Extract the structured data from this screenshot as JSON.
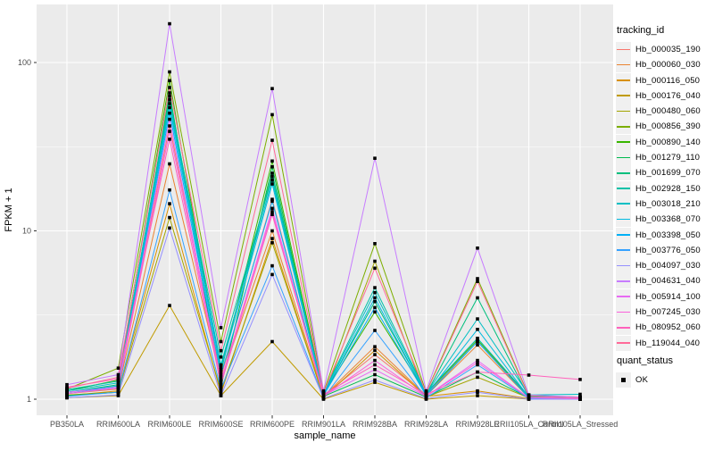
{
  "chart_data": {
    "type": "line",
    "title": "",
    "xlabel": "sample_name",
    "ylabel": "FPKM + 1",
    "y_scale": "log10",
    "ylim": [
      1,
      219
    ],
    "y_ticks": [
      1,
      10,
      100
    ],
    "y_minor_breaks": [
      3.1623,
      31.623
    ],
    "grid": "on",
    "legend_position": "right",
    "panel_bg": "#EBEBEB",
    "grid_color": "#FFFFFF",
    "tick_label_color": "#4D4D4D",
    "tick_mark_color": "#333333",
    "point_shape": "square",
    "point_color": "#000000",
    "categories": [
      "PB350LA",
      "RRIM600LA",
      "RRIM600LE",
      "RRIM600SE",
      "RRIM600PE",
      "RRIM901LA",
      "RRIM928BA",
      "RRIM928LA",
      "RRIM928LE",
      "RRII105LA_Control",
      "RRII105LA_Stressed"
    ],
    "series": [
      {
        "name": "Hb_000035_190",
        "color": "#F8766D",
        "values": [
          1.1,
          1.2,
          42.0,
          1.35,
          15.4,
          1.05,
          1.84,
          1.06,
          2.2,
          1.03,
          1.02
        ]
      },
      {
        "name": "Hb_000060_030",
        "color": "#EA8331",
        "values": [
          1.08,
          1.15,
          25.0,
          1.3,
          10.0,
          1.04,
          2.05,
          1.05,
          2.1,
          1.02,
          1.01
        ]
      },
      {
        "name": "Hb_000116_050",
        "color": "#D89000",
        "values": [
          1.05,
          1.12,
          14.5,
          1.08,
          9.0,
          1.02,
          1.95,
          1.04,
          1.12,
          1.01,
          1.0
        ]
      },
      {
        "name": "Hb_000176_040",
        "color": "#C09B00",
        "values": [
          1.02,
          1.05,
          3.6,
          1.05,
          2.2,
          1.0,
          1.26,
          1.0,
          1.05,
          1.0,
          1.0
        ]
      },
      {
        "name": "Hb_000480_060",
        "color": "#A3A500",
        "values": [
          1.06,
          1.1,
          12.0,
          1.12,
          8.5,
          1.03,
          6.6,
          1.03,
          1.35,
          1.02,
          1.01
        ]
      },
      {
        "name": "Hb_000856_390",
        "color": "#7CAE00",
        "values": [
          1.15,
          1.53,
          88.0,
          2.2,
          49.0,
          1.1,
          8.4,
          1.1,
          5.2,
          1.05,
          1.03
        ]
      },
      {
        "name": "Hb_000890_140",
        "color": "#39B600",
        "values": [
          1.12,
          1.3,
          78.0,
          1.45,
          26.0,
          1.08,
          3.3,
          1.08,
          2.25,
          1.04,
          1.02
        ]
      },
      {
        "name": "Hb_001279_110",
        "color": "#00BB4E",
        "values": [
          1.05,
          1.1,
          66.0,
          1.18,
          24.0,
          1.04,
          1.4,
          1.03,
          1.45,
          1.02,
          1.0
        ]
      },
      {
        "name": "Hb_001699_070",
        "color": "#00BF7D",
        "values": [
          1.1,
          1.22,
          63.0,
          1.55,
          22.0,
          1.07,
          3.8,
          1.07,
          4.0,
          1.03,
          1.02
        ]
      },
      {
        "name": "Hb_002928_150",
        "color": "#00C1A7",
        "values": [
          1.14,
          1.28,
          60.0,
          1.78,
          21.0,
          1.09,
          4.6,
          1.09,
          2.3,
          1.04,
          1.03
        ]
      },
      {
        "name": "Hb_003018_210",
        "color": "#00BFC4",
        "values": [
          1.12,
          1.25,
          57.0,
          1.6,
          20.0,
          1.08,
          4.3,
          1.08,
          3.0,
          1.06,
          1.07
        ]
      },
      {
        "name": "Hb_003368_070",
        "color": "#00BAE0",
        "values": [
          1.1,
          1.2,
          54.0,
          1.5,
          19.0,
          1.06,
          4.0,
          1.06,
          2.6,
          1.03,
          1.02
        ]
      },
      {
        "name": "Hb_003398_050",
        "color": "#00B0F6",
        "values": [
          1.08,
          1.18,
          50.0,
          1.4,
          15.0,
          1.05,
          3.5,
          1.05,
          2.2,
          1.02,
          1.01
        ]
      },
      {
        "name": "Hb_003776_050",
        "color": "#35A2FF",
        "values": [
          1.04,
          1.1,
          17.5,
          1.15,
          6.2,
          1.02,
          2.56,
          1.02,
          1.6,
          1.01,
          1.0
        ]
      },
      {
        "name": "Hb_004097_030",
        "color": "#9590FF",
        "values": [
          1.02,
          1.06,
          10.4,
          1.05,
          5.5,
          1.01,
          1.3,
          1.01,
          1.1,
          1.0,
          1.0
        ]
      },
      {
        "name": "Hb_004631_040",
        "color": "#C77CFF",
        "values": [
          1.22,
          1.4,
          170.0,
          2.66,
          70.0,
          1.12,
          27.0,
          1.12,
          7.9,
          1.06,
          1.03
        ]
      },
      {
        "name": "Hb_005914_100",
        "color": "#E76BF3",
        "values": [
          1.1,
          1.18,
          46.0,
          1.25,
          13.6,
          1.05,
          1.5,
          1.04,
          1.7,
          1.02,
          1.01
        ]
      },
      {
        "name": "Hb_007245_030",
        "color": "#FA62DB",
        "values": [
          1.08,
          1.16,
          39.0,
          1.28,
          13.0,
          1.04,
          1.7,
          1.04,
          1.65,
          1.02,
          1.01
        ]
      },
      {
        "name": "Hb_080952_060",
        "color": "#FF62BC",
        "values": [
          1.18,
          1.32,
          35.0,
          1.22,
          12.5,
          1.07,
          1.6,
          1.07,
          1.45,
          1.39,
          1.31
        ]
      },
      {
        "name": "Hb_119044_040",
        "color": "#FF6A98",
        "values": [
          1.16,
          1.35,
          71.0,
          1.94,
          34.5,
          1.09,
          6.0,
          1.09,
          5.0,
          1.04,
          1.02
        ]
      }
    ]
  },
  "legend": {
    "title": "tracking_id"
  },
  "quant_legend": {
    "title": "quant_status",
    "items": [
      {
        "label": "OK"
      }
    ]
  }
}
